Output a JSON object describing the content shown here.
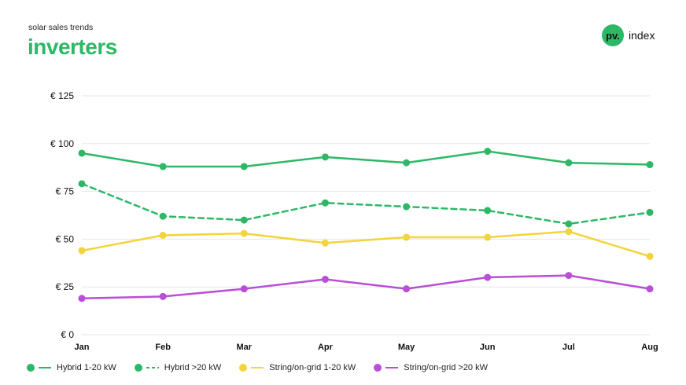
{
  "header": {
    "subtitle": "solar sales trends",
    "title": "inverters",
    "logo_badge": "pv.",
    "logo_text": "index"
  },
  "colors": {
    "hybrid": "#2db866",
    "string_small": "#f2d43c",
    "string_large": "#b84fd6",
    "grid": "#e6e6e6",
    "title": "#2db866"
  },
  "chart_data": {
    "type": "line",
    "categories": [
      "Jan",
      "Feb",
      "Mar",
      "Apr",
      "May",
      "Jun",
      "Jul",
      "Aug"
    ],
    "y_ticks": [
      "€ 0",
      "€ 25",
      "€ 50",
      "€ 75",
      "€ 100",
      "€ 125"
    ],
    "ylim": [
      0,
      125
    ],
    "grid": true,
    "legend_position": "bottom-left",
    "series": [
      {
        "name": "Hybrid 1-20 kW",
        "color": "#2db866",
        "dashed": false,
        "values": [
          95,
          88,
          88,
          93,
          90,
          96,
          90,
          89
        ]
      },
      {
        "name": "Hybrid >20 kW",
        "color": "#2db866",
        "dashed": true,
        "values": [
          79,
          62,
          60,
          69,
          67,
          65,
          58,
          64
        ]
      },
      {
        "name": "String/on-grid 1-20 kW",
        "color": "#f2d43c",
        "dashed": false,
        "values": [
          44,
          52,
          53,
          48,
          51,
          51,
          54,
          41
        ]
      },
      {
        "name": "String/on-grid >20 kW",
        "color": "#b84fd6",
        "dashed": false,
        "values": [
          19,
          20,
          24,
          29,
          24,
          30,
          31,
          24
        ]
      }
    ]
  }
}
